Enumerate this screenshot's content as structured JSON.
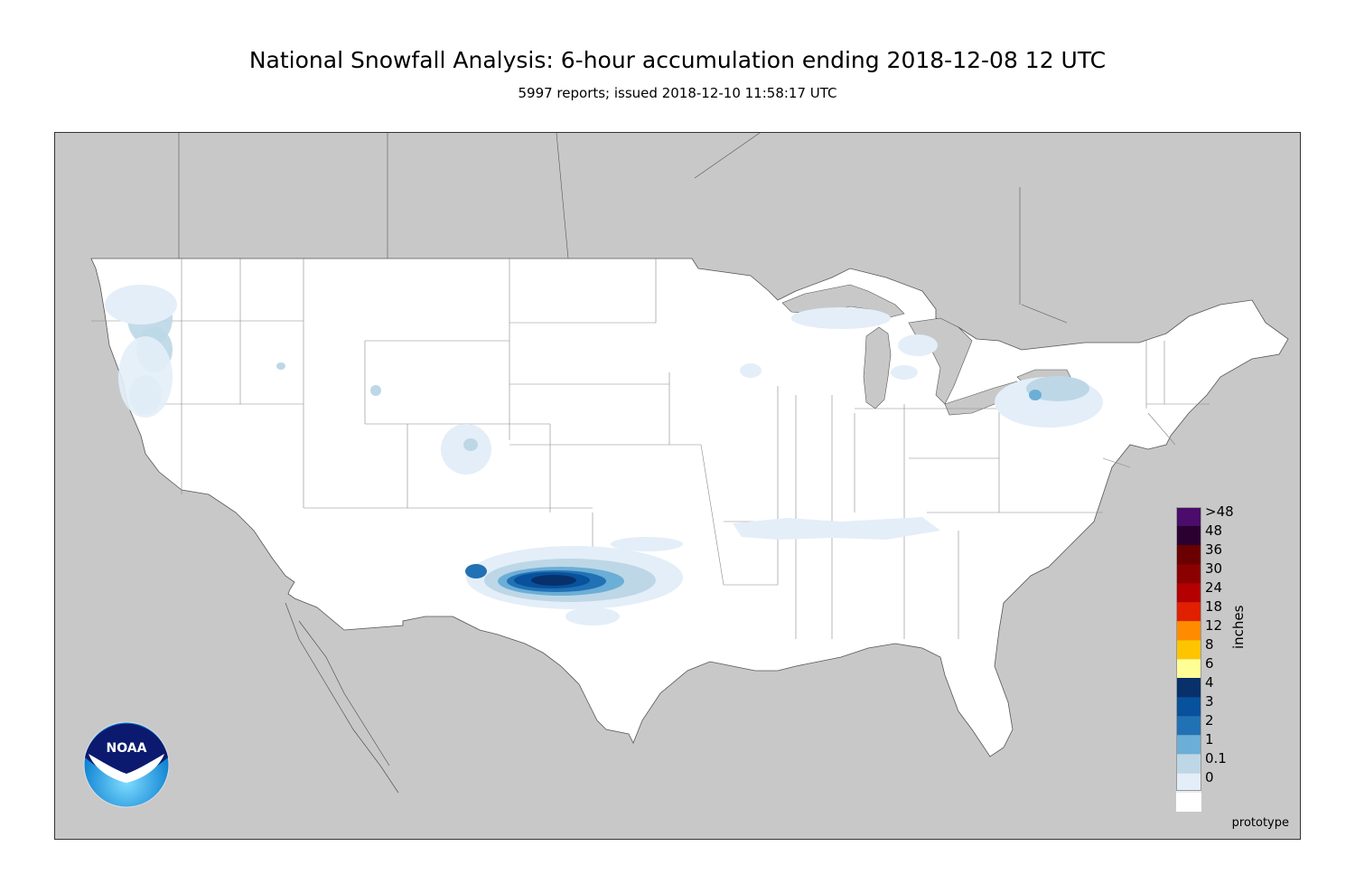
{
  "header": {
    "title": "National Snowfall Analysis: 6-hour accumulation ending 2018-12-08 12 UTC",
    "subtitle": "5997 reports; issued 2018-12-10 11:58:17 UTC"
  },
  "map": {
    "watermark": "prototype",
    "colors": {
      "land_outside": "#c8c8c8",
      "land_inside": "#ffffff",
      "water": "#c8c8c8",
      "border": "#555555"
    }
  },
  "legend": {
    "unit": "inches",
    "entries": [
      {
        "label": ">48",
        "color": "#4b0c6b"
      },
      {
        "label": "48",
        "color": "#2b0030"
      },
      {
        "label": "36",
        "color": "#6b0000"
      },
      {
        "label": "30",
        "color": "#8b0000"
      },
      {
        "label": "24",
        "color": "#b40000"
      },
      {
        "label": "18",
        "color": "#e02000"
      },
      {
        "label": "12",
        "color": "#ff8c00"
      },
      {
        "label": "8",
        "color": "#ffc400"
      },
      {
        "label": "6",
        "color": "#ffff96"
      },
      {
        "label": "4",
        "color": "#08306b"
      },
      {
        "label": "3",
        "color": "#08519c"
      },
      {
        "label": "2",
        "color": "#2171b5"
      },
      {
        "label": "1",
        "color": "#6baed6"
      },
      {
        "label": "0.1",
        "color": "#bdd7e7"
      },
      {
        "label": "0",
        "color": "#e3eef8"
      },
      {
        "label": "",
        "color": "#ffffff"
      }
    ]
  },
  "logo": {
    "text": "NOAA",
    "icon": "noaa-logo-icon"
  }
}
